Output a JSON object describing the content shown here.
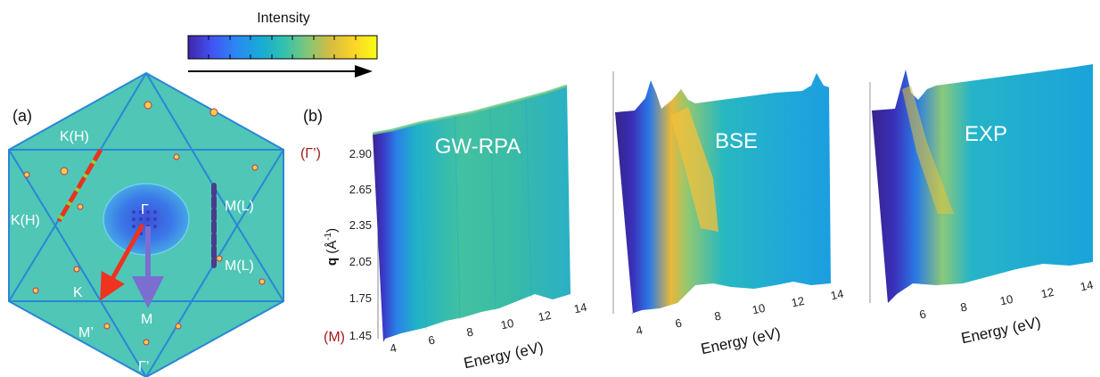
{
  "colorbar": {
    "title": "Intensity",
    "colors": [
      "#3e26a8",
      "#4353f3",
      "#2c86f5",
      "#17a8d8",
      "#2ec0b1",
      "#7cc77c",
      "#d5bc42",
      "#fbd427",
      "#f9fb15"
    ]
  },
  "panel_a": {
    "label": "(a)",
    "points": {
      "gamma": "Γ",
      "k_h_top": "K(H)",
      "k_h_left": "K(H)",
      "m_l_top": "M(L)",
      "m_l_bottom": "M(L)",
      "k": "K",
      "m": "M",
      "m_prime": "M’",
      "gamma_prime": "Γ’"
    },
    "colors": {
      "hexagon_fill": "#4fc6b6",
      "zone_line": "#2a86d6",
      "arrow_gk": "#f0321e",
      "arrow_gm": "#7a6fd0",
      "dash_red": "#e8321e",
      "dash_green": "#8cd23c",
      "dash_purple": "#4a3b8c"
    }
  },
  "panel_b": {
    "label": "(b)",
    "y_axis": {
      "label_bold": "q",
      "label_unit": " (Å",
      "label_sup": "-1",
      "label_close": ")",
      "ticks": [
        "2.90",
        "2.65",
        "2.35",
        "2.05",
        "1.75",
        "1.45"
      ],
      "top_point": "(Γ’)",
      "bottom_point": "(M)",
      "point_color": "#a01c1c"
    },
    "plots": [
      {
        "title": "GW-RPA",
        "xlabel": "Energy (eV)",
        "ticks": [
          "4",
          "6",
          "8",
          "10",
          "12",
          "14"
        ]
      },
      {
        "title": "BSE",
        "xlabel": "Energy (eV)",
        "ticks": [
          "4",
          "6",
          "8",
          "10",
          "12",
          "14"
        ]
      },
      {
        "title": "EXP",
        "xlabel": "Energy (eV)",
        "ticks": [
          "6",
          "8",
          "10",
          "12",
          "14"
        ]
      }
    ]
  }
}
